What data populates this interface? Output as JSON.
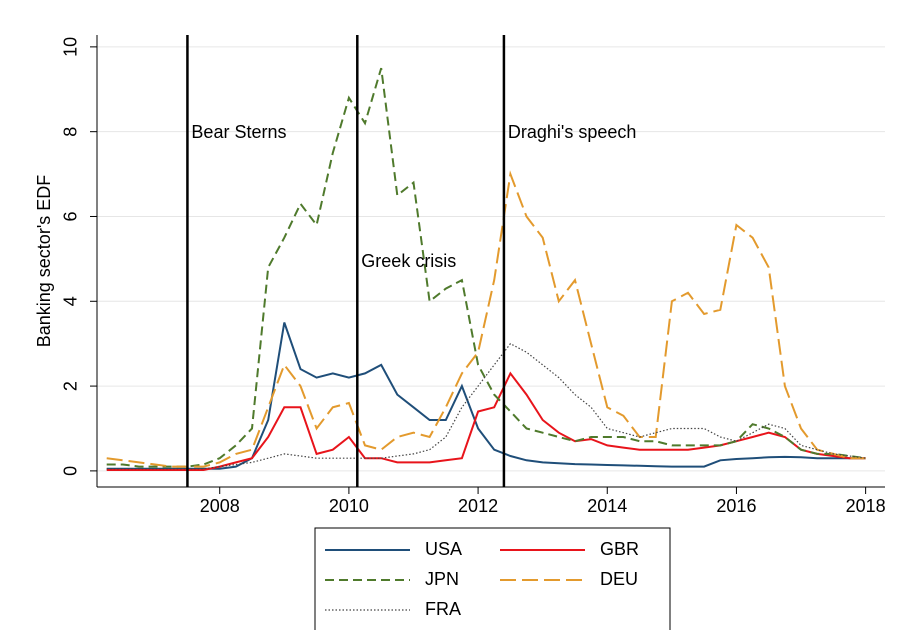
{
  "chart_data": {
    "type": "line",
    "y_label": "Banking sector's EDF",
    "x": [
      2006.25,
      2006.5,
      2006.75,
      2007,
      2007.25,
      2007.5,
      2007.75,
      2008,
      2008.25,
      2008.5,
      2008.75,
      2009,
      2009.25,
      2009.5,
      2009.75,
      2010,
      2010.25,
      2010.5,
      2010.75,
      2011,
      2011.25,
      2011.5,
      2011.75,
      2012,
      2012.25,
      2012.5,
      2012.75,
      2013,
      2013.25,
      2013.5,
      2013.75,
      2014,
      2014.25,
      2014.5,
      2014.75,
      2015,
      2015.25,
      2015.5,
      2015.75,
      2016,
      2016.25,
      2016.5,
      2016.75,
      2017,
      2017.25,
      2017.5,
      2017.75,
      2018
    ],
    "series": [
      {
        "name": "USA",
        "color": "#1f4e79",
        "style": "solid",
        "values": [
          0.05,
          0.05,
          0.05,
          0.05,
          0.05,
          0.05,
          0.05,
          0.05,
          0.1,
          0.3,
          1.2,
          3.5,
          2.4,
          2.2,
          2.3,
          2.2,
          2.3,
          2.5,
          1.8,
          1.5,
          1.2,
          1.2,
          2.0,
          1.0,
          0.5,
          0.35,
          0.25,
          0.2,
          0.18,
          0.16,
          0.15,
          0.14,
          0.13,
          0.12,
          0.11,
          0.1,
          0.1,
          0.1,
          0.25,
          0.28,
          0.3,
          0.32,
          0.33,
          0.32,
          0.3,
          0.3,
          0.3,
          0.3
        ]
      },
      {
        "name": "GBR",
        "color": "#e8141b",
        "style": "solid",
        "values": [
          0.02,
          0.02,
          0.02,
          0.02,
          0.02,
          0.02,
          0.02,
          0.1,
          0.2,
          0.3,
          0.8,
          1.5,
          1.5,
          0.4,
          0.5,
          0.8,
          0.3,
          0.3,
          0.2,
          0.2,
          0.2,
          0.25,
          0.3,
          1.4,
          1.5,
          2.3,
          1.8,
          1.2,
          0.9,
          0.7,
          0.75,
          0.6,
          0.55,
          0.5,
          0.5,
          0.5,
          0.5,
          0.55,
          0.6,
          0.7,
          0.8,
          0.9,
          0.8,
          0.5,
          0.4,
          0.35,
          0.3,
          0.3
        ]
      },
      {
        "name": "JPN",
        "color": "#4f7a2c",
        "style": "dashed",
        "values": [
          0.15,
          0.15,
          0.1,
          0.1,
          0.1,
          0.1,
          0.15,
          0.3,
          0.6,
          1.0,
          4.8,
          5.5,
          6.3,
          5.8,
          7.5,
          8.8,
          8.2,
          9.5,
          6.5,
          6.8,
          4.0,
          4.3,
          4.5,
          2.5,
          1.8,
          1.4,
          1.0,
          0.9,
          0.8,
          0.7,
          0.8,
          0.8,
          0.8,
          0.7,
          0.7,
          0.6,
          0.6,
          0.6,
          0.6,
          0.7,
          1.1,
          1.0,
          0.8,
          0.5,
          0.4,
          0.4,
          0.35,
          0.3
        ]
      },
      {
        "name": "DEU",
        "color": "#e39a2d",
        "style": "longdash",
        "values": [
          0.3,
          0.25,
          0.2,
          0.15,
          0.1,
          0.1,
          0.1,
          0.2,
          0.4,
          0.5,
          1.5,
          2.5,
          2.0,
          1.0,
          1.5,
          1.6,
          0.6,
          0.5,
          0.8,
          0.9,
          0.8,
          1.5,
          2.3,
          2.8,
          4.5,
          7.0,
          6.0,
          5.5,
          4.0,
          4.5,
          3.0,
          1.5,
          1.3,
          0.8,
          0.8,
          4.0,
          4.2,
          3.7,
          3.8,
          5.8,
          5.5,
          4.8,
          2.0,
          1.0,
          0.5,
          0.4,
          0.3,
          0.3
        ]
      },
      {
        "name": "FRA",
        "color": "#444444",
        "style": "dotted",
        "values": [
          0.05,
          0.05,
          0.05,
          0.05,
          0.05,
          0.05,
          0.05,
          0.1,
          0.15,
          0.2,
          0.3,
          0.4,
          0.35,
          0.3,
          0.3,
          0.3,
          0.3,
          0.3,
          0.35,
          0.4,
          0.5,
          0.8,
          1.5,
          2.0,
          2.5,
          3.0,
          2.8,
          2.5,
          2.2,
          1.8,
          1.5,
          1.0,
          0.9,
          0.8,
          0.9,
          1.0,
          1.0,
          1.0,
          0.8,
          0.7,
          0.9,
          1.1,
          1.0,
          0.6,
          0.5,
          0.4,
          0.35,
          0.3
        ]
      }
    ],
    "events": [
      {
        "x": 2007.5,
        "label": "Bear Sterns"
      },
      {
        "x": 2010.13,
        "label": "Greek crisis"
      },
      {
        "x": 2012.4,
        "label": "Draghi's speech"
      }
    ],
    "xlim": [
      2006.1,
      2018.3
    ],
    "xticks": [
      2008,
      2010,
      2012,
      2014,
      2016,
      2018
    ],
    "ylim": [
      -0.38,
      10.28
    ],
    "yticks": [
      0,
      2,
      4,
      6,
      8,
      10
    ],
    "grid": true,
    "legend": "bottom"
  }
}
